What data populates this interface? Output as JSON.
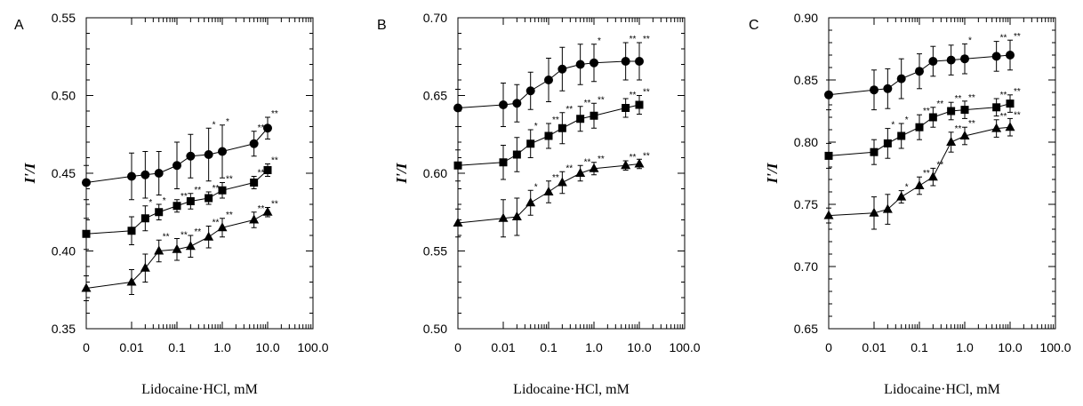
{
  "chart_data": [
    {
      "type": "line",
      "panel_label": "A",
      "xlabel": "Lidocaine·HCl, mM",
      "ylabel": "I'/I",
      "x_tick_labels": [
        "0",
        "0.01",
        "0.1",
        "1.0",
        "10.0",
        "100.0"
      ],
      "x": [
        "0",
        "0.01",
        "0.02",
        "0.04",
        "0.1",
        "0.2",
        "0.5",
        "1",
        "5",
        "10"
      ],
      "ylim": [
        0.35,
        0.55
      ],
      "yticks": [
        "0.35",
        "0.40",
        "0.45",
        "0.50",
        "0.55"
      ],
      "grid": false,
      "series": [
        {
          "marker": "circle",
          "values": [
            0.444,
            0.448,
            0.449,
            0.45,
            0.455,
            0.461,
            0.462,
            0.464,
            0.469,
            0.479
          ],
          "errors": [
            0.011,
            0.015,
            0.015,
            0.014,
            0.015,
            0.014,
            0.017,
            0.017,
            0.008,
            0.007
          ],
          "stars": [
            "",
            "",
            "",
            "",
            "",
            "",
            "*",
            "*",
            "**",
            "**"
          ]
        },
        {
          "marker": "square",
          "values": [
            0.411,
            0.413,
            0.421,
            0.425,
            0.429,
            0.432,
            0.434,
            0.439,
            0.444,
            0.452
          ],
          "errors": [
            0.01,
            0.009,
            0.008,
            0.005,
            0.004,
            0.005,
            0.004,
            0.005,
            0.004,
            0.004
          ],
          "stars": [
            "",
            "",
            "*",
            "*",
            "**",
            "**",
            "**",
            "**",
            "**",
            "**"
          ]
        },
        {
          "marker": "triangle",
          "values": [
            0.376,
            0.38,
            0.389,
            0.4,
            0.401,
            0.403,
            0.409,
            0.415,
            0.42,
            0.425
          ],
          "errors": [
            0.008,
            0.008,
            0.009,
            0.007,
            0.007,
            0.007,
            0.007,
            0.006,
            0.005,
            0.003
          ],
          "stars": [
            "",
            "",
            "",
            "**",
            "**",
            "**",
            "**",
            "**",
            "**",
            "**"
          ]
        }
      ]
    },
    {
      "type": "line",
      "panel_label": "B",
      "xlabel": "Lidocaine·HCl, mM",
      "ylabel": "I'/I",
      "x_tick_labels": [
        "0",
        "0.01",
        "0.1",
        "1.0",
        "10.0",
        "100.0"
      ],
      "x": [
        "0",
        "0.01",
        "0.02",
        "0.04",
        "0.1",
        "0.2",
        "0.5",
        "1",
        "5",
        "10"
      ],
      "ylim": [
        0.5,
        0.7
      ],
      "yticks": [
        "0.50",
        "0.55",
        "0.60",
        "0.65",
        "0.70"
      ],
      "grid": false,
      "series": [
        {
          "marker": "circle",
          "values": [
            0.642,
            0.644,
            0.645,
            0.653,
            0.66,
            0.667,
            0.67,
            0.671,
            0.672,
            0.672
          ],
          "errors": [
            0.012,
            0.014,
            0.012,
            0.012,
            0.014,
            0.014,
            0.013,
            0.012,
            0.012,
            0.012
          ],
          "stars": [
            "",
            "",
            "",
            "",
            "",
            "",
            "",
            "*",
            "**",
            "**"
          ]
        },
        {
          "marker": "square",
          "values": [
            0.605,
            0.607,
            0.612,
            0.619,
            0.624,
            0.629,
            0.635,
            0.637,
            0.642,
            0.644
          ],
          "errors": [
            0.01,
            0.011,
            0.011,
            0.009,
            0.008,
            0.01,
            0.008,
            0.008,
            0.006,
            0.006
          ],
          "stars": [
            "",
            "",
            "",
            "*",
            "**",
            "**",
            "**",
            "**",
            "**",
            "**"
          ]
        },
        {
          "marker": "triangle",
          "values": [
            0.568,
            0.571,
            0.572,
            0.581,
            0.588,
            0.594,
            0.6,
            0.603,
            0.605,
            0.606
          ],
          "errors": [
            0.009,
            0.012,
            0.012,
            0.008,
            0.007,
            0.007,
            0.005,
            0.004,
            0.003,
            0.003
          ],
          "stars": [
            "",
            "",
            "",
            "*",
            "**",
            "**",
            "**",
            "**",
            "**",
            "**"
          ]
        }
      ]
    },
    {
      "type": "line",
      "panel_label": "C",
      "xlabel": "Lidocaine·HCl, mM",
      "ylabel": "I'/I",
      "x_tick_labels": [
        "0",
        "0.01",
        "0.1",
        "1.0",
        "10.0",
        "100.0"
      ],
      "x": [
        "0",
        "0.01",
        "0.02",
        "0.04",
        "0.1",
        "0.2",
        "0.5",
        "1",
        "5",
        "10"
      ],
      "ylim": [
        0.65,
        0.9
      ],
      "yticks": [
        "0.65",
        "0.70",
        "0.75",
        "0.80",
        "0.85",
        "0.90"
      ],
      "grid": false,
      "series": [
        {
          "marker": "circle",
          "values": [
            0.838,
            0.842,
            0.843,
            0.851,
            0.857,
            0.865,
            0.866,
            0.867,
            0.869,
            0.87
          ],
          "errors": [
            0.012,
            0.016,
            0.016,
            0.016,
            0.014,
            0.012,
            0.012,
            0.012,
            0.012,
            0.012
          ],
          "stars": [
            "",
            "",
            "",
            "",
            "",
            "",
            "",
            "*",
            "**",
            "**"
          ]
        },
        {
          "marker": "square",
          "values": [
            0.789,
            0.792,
            0.799,
            0.805,
            0.812,
            0.82,
            0.825,
            0.826,
            0.828,
            0.831
          ],
          "errors": [
            0.01,
            0.01,
            0.012,
            0.01,
            0.01,
            0.008,
            0.007,
            0.007,
            0.007,
            0.007
          ],
          "stars": [
            "",
            "",
            "*",
            "*",
            "**",
            "**",
            "**",
            "**",
            "**",
            "**"
          ]
        },
        {
          "marker": "triangle",
          "values": [
            0.741,
            0.743,
            0.746,
            0.756,
            0.765,
            0.772,
            0.8,
            0.805,
            0.811,
            0.812
          ],
          "errors": [
            0.006,
            0.013,
            0.012,
            0.005,
            0.007,
            0.007,
            0.008,
            0.007,
            0.007,
            0.007
          ],
          "stars": [
            "",
            "",
            "",
            "*",
            "**",
            "**",
            "**",
            "**",
            "**",
            "**"
          ]
        }
      ]
    }
  ]
}
